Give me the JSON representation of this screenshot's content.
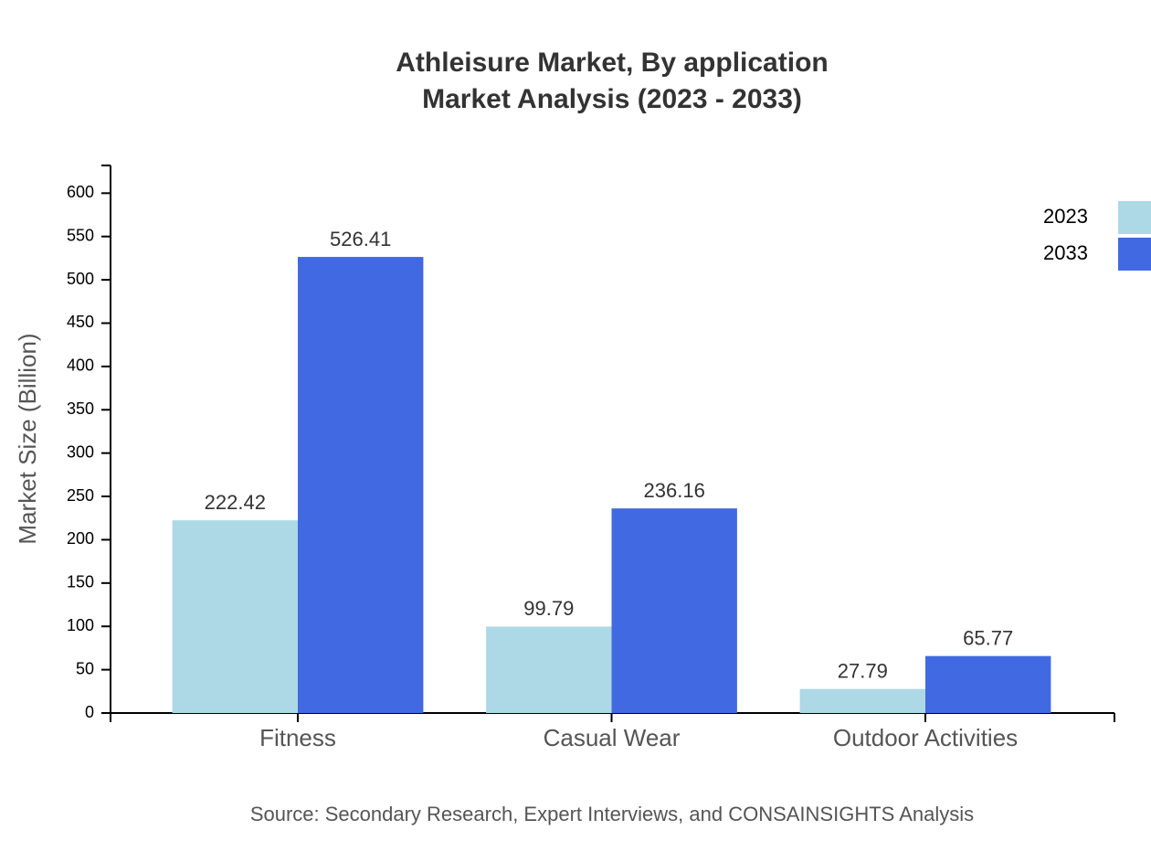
{
  "chart_data": {
    "type": "bar",
    "title": "Athleisure Market, By application",
    "subtitle": "Market Analysis (2023 - 2033)",
    "y_label": "Market Size (Billion)",
    "source": "Source: Secondary Research, Expert Interviews, and CONSAINSIGHTS Analysis",
    "categories": [
      "Fitness",
      "Casual Wear",
      "Outdoor Activities"
    ],
    "series": [
      {
        "name": "2023",
        "color": "#add8e6",
        "values": [
          222.42,
          99.79,
          27.79
        ]
      },
      {
        "name": "2033",
        "color": "#4169e1",
        "values": [
          526.41,
          236.16,
          65.77
        ]
      }
    ],
    "ylim": [
      0,
      632
    ],
    "yticks": [
      0,
      50,
      100,
      150,
      200,
      250,
      300,
      350,
      400,
      450,
      500,
      550,
      600
    ],
    "legend": "top-right"
  }
}
